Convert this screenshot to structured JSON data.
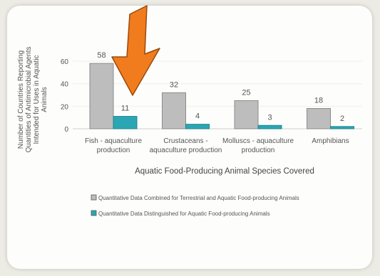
{
  "chart_data": {
    "type": "bar",
    "categories": [
      [
        "Fish - aquaculture",
        "production"
      ],
      [
        "Crustaceans -",
        "aquaculture production"
      ],
      [
        "Molluscs - aquaculture",
        "production"
      ],
      [
        "Amphibians"
      ]
    ],
    "series": [
      {
        "name": "Quantitative Data Combined for Terrestrial and Aquatic Food-producing Animals",
        "values": [
          58,
          32,
          25,
          18
        ],
        "color": "#bdbdbd"
      },
      {
        "name": "Quantitative Data Distinguished for Aquatic Food-producing Animals",
        "values": [
          11,
          4,
          3,
          2
        ],
        "color": "#2aa7b3"
      }
    ],
    "xlabel": "Aquatic Food-Producing Animal Species Covered",
    "ylabel": [
      "Number of Countries Reporting",
      "Quantities of Antimicrobial Agents",
      "Intended for Uses in Aquatic",
      "Animals"
    ],
    "ylim": [
      0,
      60
    ],
    "yticks": [
      0,
      20,
      40,
      60
    ],
    "legend_position": "bottom",
    "annotation": {
      "type": "arrow",
      "color": "#f07c1e",
      "points_to": "Fish - aquaculture production, second series bar"
    }
  }
}
